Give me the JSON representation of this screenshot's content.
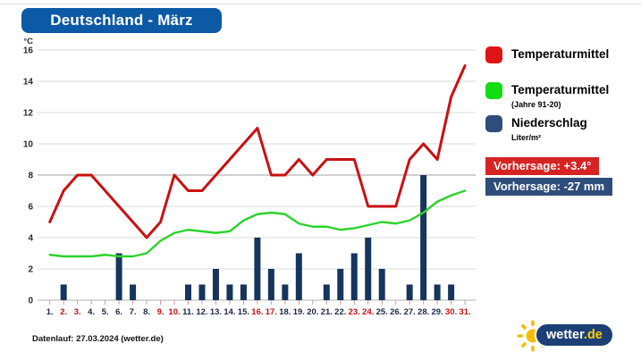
{
  "title": "Deutschland - März",
  "footer": {
    "datenlauf": "Datenlauf: 27.03.2024 (wetter.de)"
  },
  "logo": {
    "text": "wetter",
    "tld": ".de"
  },
  "colors": {
    "title_bg": "#0c59a5",
    "banner_red": "#d62422",
    "banner_navy": "#2e4d7b",
    "weekend_label": "#c41212",
    "weekday_label": "#1d2945",
    "tick_mark": "#d59595",
    "grid_light": "#d9d9d9",
    "grid_dark": "#a3a3a3",
    "axis_line": "#b0b0b0",
    "logo_blue": "#1c3f76",
    "sun_yellow": "#f4be00",
    "tld_yellow": "#ffd200"
  },
  "legend": [
    {
      "label": "Temperaturmittel",
      "sublabel": "",
      "color": "#e01414"
    },
    {
      "label": "Temperaturmittel",
      "sublabel": "(Jahre 91-20)",
      "color": "#12dd12"
    },
    {
      "label": "Niederschlag",
      "sublabel": "Liter/m²",
      "color": "#2e4d7b"
    }
  ],
  "forecast_badges": [
    {
      "label": "Vorhersage: +3.4°",
      "color": "#d62422"
    },
    {
      "label": "Vorhersage: -27 mm",
      "color": "#2e4d7b"
    }
  ],
  "chart_data": {
    "type": "line+bar",
    "title": "Deutschland - März",
    "ylabel": "°C",
    "ylim": [
      0,
      16
    ],
    "y_ticks": [
      0,
      2,
      4,
      6,
      8,
      10,
      12,
      14,
      16
    ],
    "grid": "horizontal",
    "categories": [
      "1.",
      "2.",
      "3.",
      "4.",
      "5.",
      "6.",
      "7.",
      "8.",
      "9.",
      "10.",
      "11.",
      "12.",
      "13.",
      "14.",
      "15.",
      "16.",
      "17.",
      "18.",
      "19.",
      "20.",
      "21.",
      "22.",
      "23.",
      "24.",
      "25.",
      "26.",
      "27.",
      "28.",
      "29.",
      "30.",
      "31."
    ],
    "weekend_days": [
      2,
      3,
      9,
      10,
      16,
      17,
      23,
      24,
      30,
      31
    ],
    "series": [
      {
        "name": "Temperaturmittel",
        "type": "line",
        "color": "#cb1010",
        "values": [
          5,
          7,
          8,
          8,
          7,
          6,
          5,
          4,
          5,
          8,
          7,
          7,
          8,
          9,
          10,
          11,
          8,
          8,
          9,
          8,
          9,
          9,
          9,
          6,
          6,
          6,
          9,
          10,
          9,
          13,
          15
        ]
      },
      {
        "name": "Temperaturmittel (Jahre 91-20)",
        "type": "line",
        "color": "#2bd32b",
        "values": [
          2.9,
          2.8,
          2.8,
          2.8,
          2.9,
          2.8,
          2.8,
          3.0,
          3.8,
          4.3,
          4.5,
          4.4,
          4.3,
          4.4,
          5.1,
          5.5,
          5.6,
          5.5,
          4.9,
          4.7,
          4.7,
          4.5,
          4.6,
          4.8,
          5.0,
          4.9,
          5.1,
          5.6,
          6.3,
          6.7,
          7.0
        ]
      },
      {
        "name": "Niederschlag Liter/m²",
        "type": "bar",
        "color": "#16355c",
        "values": [
          0,
          1,
          0,
          0,
          0,
          3,
          1,
          0,
          0,
          0,
          1,
          1,
          2,
          1,
          1,
          4,
          2,
          1,
          3,
          0,
          1,
          2,
          3,
          4,
          2,
          0,
          1,
          8,
          1,
          1,
          0
        ]
      }
    ]
  }
}
